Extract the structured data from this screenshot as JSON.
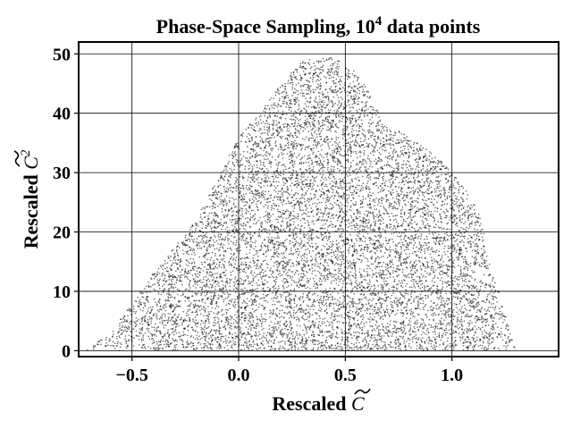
{
  "chart_data": {
    "type": "scatter",
    "title": {
      "prefix": "Phase-Space Sampling, 10",
      "superscript": "4",
      "suffix": " data points"
    },
    "xlabel": {
      "prefix": "Rescaled ",
      "symbol": "C"
    },
    "ylabel": {
      "prefix": "Rescaled ",
      "symbol": "C",
      "superscript": "2"
    },
    "xlim": [
      -0.75,
      1.5
    ],
    "ylim": [
      -1,
      52
    ],
    "x_ticks": [
      -0.5,
      0.0,
      0.5,
      1.0
    ],
    "x_tick_labels": [
      "−0.5",
      "0.0",
      "0.5",
      "1.0"
    ],
    "y_ticks": [
      0,
      10,
      20,
      30,
      40,
      50
    ],
    "y_tick_labels": [
      "0",
      "10",
      "20",
      "30",
      "40",
      "50"
    ],
    "grid": true,
    "marker_color": "#000000",
    "series": [
      {
        "point_count": 10000,
        "region_upper_boundary": [
          {
            "x": -0.72,
            "y": 0
          },
          {
            "x": -0.6,
            "y": 3
          },
          {
            "x": -0.5,
            "y": 8
          },
          {
            "x": -0.4,
            "y": 13
          },
          {
            "x": -0.2,
            "y": 22
          },
          {
            "x": 0.0,
            "y": 36
          },
          {
            "x": 0.1,
            "y": 40
          },
          {
            "x": 0.2,
            "y": 45
          },
          {
            "x": 0.3,
            "y": 49
          },
          {
            "x": 0.37,
            "y": 50
          },
          {
            "x": 0.45,
            "y": 49.5
          },
          {
            "x": 0.55,
            "y": 47
          },
          {
            "x": 0.62,
            "y": 43
          },
          {
            "x": 0.68,
            "y": 38
          },
          {
            "x": 0.75,
            "y": 37
          },
          {
            "x": 0.85,
            "y": 35
          },
          {
            "x": 0.95,
            "y": 32
          },
          {
            "x": 1.05,
            "y": 28
          },
          {
            "x": 1.12,
            "y": 24
          },
          {
            "x": 1.15,
            "y": 20
          },
          {
            "x": 1.18,
            "y": 14
          },
          {
            "x": 1.22,
            "y": 10
          },
          {
            "x": 1.26,
            "y": 5
          },
          {
            "x": 1.3,
            "y": 0
          }
        ]
      }
    ]
  }
}
